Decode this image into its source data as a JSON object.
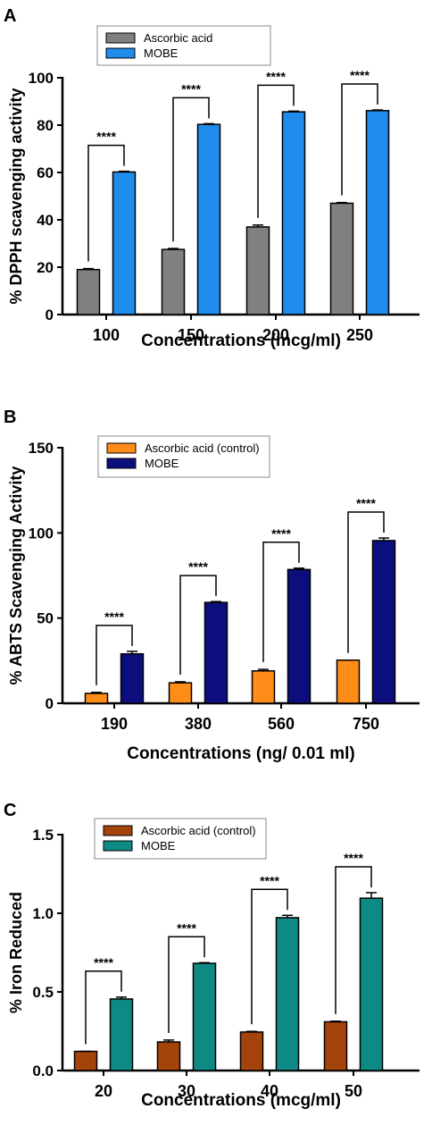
{
  "chart_data": [
    {
      "panel": "A",
      "type": "bar",
      "categories": [
        "100",
        "150",
        "200",
        "250"
      ],
      "series": [
        {
          "name": "Ascorbic acid",
          "values": [
            19,
            27.5,
            37,
            47
          ],
          "errors": [
            0.4,
            0.4,
            0.8,
            0.3
          ],
          "color": "#808080"
        },
        {
          "name": "MOBE",
          "values": [
            60.2,
            80.3,
            85.6,
            86.1
          ],
          "errors": [
            0.3,
            0.3,
            0.3,
            0.3
          ],
          "color": "#1f8ceb"
        }
      ],
      "yticks": [
        "0",
        "20",
        "40",
        "60",
        "80",
        "100"
      ],
      "ylim": [
        0,
        100
      ],
      "xlabel": "Concentrations (mcg/ml)",
      "ylabel": "% DPPH scavenging activity",
      "significance": [
        "****",
        "****",
        "****",
        "****"
      ],
      "legend_placement": "top-left"
    },
    {
      "panel": "B",
      "type": "bar",
      "categories": [
        "190",
        "380",
        "560",
        "750"
      ],
      "series": [
        {
          "name": "Ascorbic acid (control)",
          "values": [
            5.8,
            12,
            19,
            25.3
          ],
          "errors": [
            0.6,
            0.6,
            0.9,
            0
          ],
          "color": "#fe8c18"
        },
        {
          "name": "MOBE",
          "values": [
            29,
            59.2,
            78.5,
            95.5
          ],
          "errors": [
            1.5,
            0.5,
            0.8,
            1.5
          ],
          "color": "#0c0e7e"
        }
      ],
      "yticks": [
        "0",
        "50",
        "100",
        "150"
      ],
      "ylim": [
        0,
        150
      ],
      "xlabel": "Concentrations (ng/ 0.01 ml)",
      "ylabel": "% ABTS Scavenging Activity",
      "significance": [
        "****",
        "****",
        "****",
        "****"
      ],
      "legend_placement": "top-left"
    },
    {
      "panel": "C",
      "type": "bar",
      "categories": [
        "20",
        "30",
        "40",
        "50"
      ],
      "series": [
        {
          "name": "Ascorbic acid (control)",
          "values": [
            0.122,
            0.182,
            0.245,
            0.31
          ],
          "errors": [
            0,
            0.012,
            0.004,
            0.004
          ],
          "color": "#a4430c"
        },
        {
          "name": "MOBE",
          "values": [
            0.455,
            0.682,
            0.972,
            1.096
          ],
          "errors": [
            0.012,
            0.004,
            0.015,
            0.035
          ],
          "color": "#0d8a83"
        }
      ],
      "yticks": [
        "0.0",
        "0.5",
        "1.0",
        "1.5"
      ],
      "ylim": [
        0,
        1.5
      ],
      "xlabel": "Concentrations (mcg/ml)",
      "ylabel": "% Iron Reduced",
      "significance": [
        "****",
        "****",
        "****",
        "****"
      ],
      "legend_placement": "top-left"
    }
  ]
}
